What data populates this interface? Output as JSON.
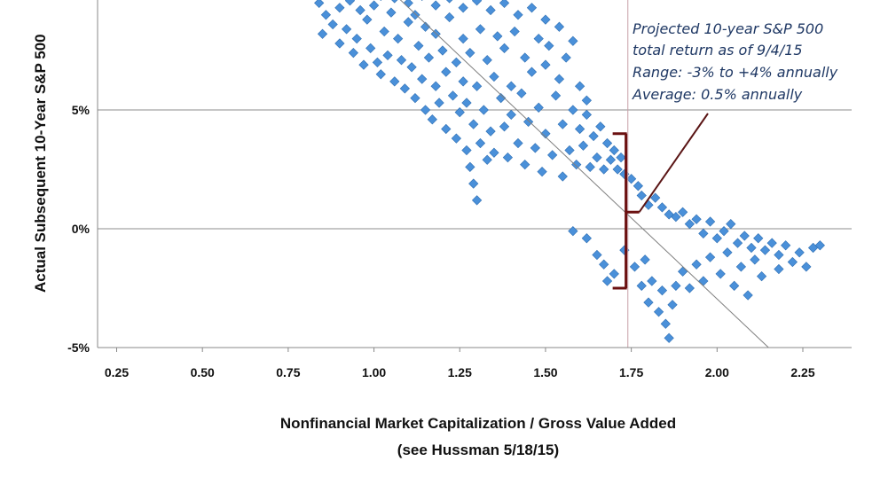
{
  "chart_data": {
    "type": "scatter",
    "title": "",
    "xlabel": "Nonfinancial Market Capitalization / Gross Value Added",
    "xlabel_sub": "(see Hussman 5/18/15)",
    "ylabel": "Actual Subsequent 10-Year S&P 500",
    "xlim": [
      0.25,
      2.35
    ],
    "ylim": [
      -5,
      10
    ],
    "x_ticks": [
      0.25,
      0.5,
      0.75,
      1.0,
      1.25,
      1.5,
      1.75,
      2.0,
      2.25
    ],
    "x_tick_labels": [
      "0.25",
      "0.50",
      "0.75",
      "1.00",
      "1.25",
      "1.50",
      "1.75",
      "2.00",
      "2.25"
    ],
    "y_ticks": [
      -5,
      0,
      5
    ],
    "y_tick_labels": [
      "-5%",
      "0%",
      "5%"
    ],
    "grid": "horizontal",
    "marker": "diamond",
    "marker_color": "#4a90d9",
    "series": [
      {
        "points": [
          [
            0.84,
            9.5
          ],
          [
            0.85,
            8.2
          ],
          [
            0.86,
            9.0
          ],
          [
            0.88,
            8.6
          ],
          [
            0.9,
            9.3
          ],
          [
            0.9,
            7.8
          ],
          [
            0.92,
            8.4
          ],
          [
            0.93,
            9.6
          ],
          [
            0.94,
            7.4
          ],
          [
            0.95,
            8.0
          ],
          [
            0.96,
            9.2
          ],
          [
            0.97,
            6.9
          ],
          [
            0.98,
            8.8
          ],
          [
            0.99,
            7.6
          ],
          [
            1.0,
            9.4
          ],
          [
            1.01,
            7.0
          ],
          [
            1.02,
            6.5
          ],
          [
            1.03,
            8.3
          ],
          [
            1.04,
            7.3
          ],
          [
            1.05,
            9.1
          ],
          [
            1.06,
            6.2
          ],
          [
            1.07,
            8.0
          ],
          [
            1.08,
            7.1
          ],
          [
            1.09,
            5.9
          ],
          [
            1.1,
            8.7
          ],
          [
            1.11,
            6.8
          ],
          [
            1.12,
            5.5
          ],
          [
            1.12,
            9.0
          ],
          [
            1.13,
            7.7
          ],
          [
            1.14,
            6.3
          ],
          [
            1.15,
            5.0
          ],
          [
            1.15,
            8.5
          ],
          [
            1.16,
            7.2
          ],
          [
            1.17,
            4.6
          ],
          [
            1.18,
            6.0
          ],
          [
            1.18,
            8.2
          ],
          [
            1.19,
            5.3
          ],
          [
            1.2,
            7.5
          ],
          [
            1.21,
            4.2
          ],
          [
            1.21,
            6.6
          ],
          [
            1.22,
            8.9
          ],
          [
            1.23,
            5.6
          ],
          [
            1.24,
            3.8
          ],
          [
            1.24,
            7.0
          ],
          [
            1.25,
            4.9
          ],
          [
            1.26,
            6.2
          ],
          [
            1.26,
            8.0
          ],
          [
            1.27,
            3.3
          ],
          [
            1.27,
            5.3
          ],
          [
            1.28,
            2.6
          ],
          [
            1.28,
            7.4
          ],
          [
            1.29,
            1.9
          ],
          [
            1.29,
            4.4
          ],
          [
            1.3,
            1.2
          ],
          [
            1.3,
            6.0
          ],
          [
            1.31,
            3.6
          ],
          [
            1.31,
            8.4
          ],
          [
            1.32,
            5.0
          ],
          [
            1.33,
            2.9
          ],
          [
            1.33,
            7.1
          ],
          [
            1.34,
            4.1
          ],
          [
            1.35,
            6.4
          ],
          [
            1.35,
            3.2
          ],
          [
            1.36,
            8.1
          ],
          [
            1.37,
            5.5
          ],
          [
            1.38,
            4.3
          ],
          [
            1.38,
            7.6
          ],
          [
            1.39,
            3.0
          ],
          [
            1.4,
            6.0
          ],
          [
            1.4,
            4.8
          ],
          [
            1.41,
            8.3
          ],
          [
            1.42,
            3.6
          ],
          [
            1.43,
            5.7
          ],
          [
            1.44,
            7.2
          ],
          [
            1.44,
            2.7
          ],
          [
            1.45,
            4.5
          ],
          [
            1.46,
            6.6
          ],
          [
            1.47,
            3.4
          ],
          [
            1.48,
            8.0
          ],
          [
            1.48,
            5.1
          ],
          [
            1.49,
            2.4
          ],
          [
            1.5,
            6.9
          ],
          [
            1.5,
            4.0
          ],
          [
            1.51,
            7.7
          ],
          [
            1.52,
            3.1
          ],
          [
            1.53,
            5.6
          ],
          [
            1.54,
            6.3
          ],
          [
            1.55,
            2.2
          ],
          [
            1.55,
            4.4
          ],
          [
            1.56,
            7.2
          ],
          [
            1.57,
            3.3
          ],
          [
            1.58,
            5.0
          ],
          [
            1.59,
            2.7
          ],
          [
            1.6,
            4.2
          ],
          [
            1.6,
            6.0
          ],
          [
            1.61,
            3.5
          ],
          [
            1.62,
            4.8
          ],
          [
            1.63,
            2.6
          ],
          [
            1.64,
            3.9
          ],
          [
            1.65,
            3.0
          ],
          [
            1.66,
            4.3
          ],
          [
            1.67,
            2.5
          ],
          [
            1.68,
            3.6
          ],
          [
            1.69,
            2.9
          ],
          [
            1.7,
            3.3
          ],
          [
            1.71,
            2.5
          ],
          [
            1.72,
            3.0
          ],
          [
            1.73,
            2.3
          ],
          [
            1.75,
            2.1
          ],
          [
            1.77,
            1.8
          ],
          [
            1.78,
            1.4
          ],
          [
            1.8,
            1.0
          ],
          [
            1.82,
            1.3
          ],
          [
            1.84,
            0.9
          ],
          [
            1.86,
            0.6
          ],
          [
            1.88,
            0.5
          ],
          [
            1.9,
            0.7
          ],
          [
            1.92,
            0.2
          ],
          [
            1.94,
            0.4
          ],
          [
            1.96,
            -0.2
          ],
          [
            1.98,
            0.3
          ],
          [
            2.0,
            -0.4
          ],
          [
            2.02,
            -0.1
          ],
          [
            2.04,
            0.2
          ],
          [
            2.06,
            -0.6
          ],
          [
            2.08,
            -0.3
          ],
          [
            2.1,
            -0.8
          ],
          [
            2.12,
            -0.4
          ],
          [
            2.14,
            -0.9
          ],
          [
            2.16,
            -0.6
          ],
          [
            2.18,
            -1.1
          ],
          [
            2.2,
            -0.7
          ],
          [
            2.22,
            -1.4
          ],
          [
            2.24,
            -1.0
          ],
          [
            2.26,
            -1.6
          ],
          [
            2.28,
            -0.8
          ],
          [
            2.3,
            -0.7
          ],
          [
            1.58,
            -0.1
          ],
          [
            1.62,
            -0.4
          ],
          [
            1.65,
            -1.1
          ],
          [
            1.67,
            -1.5
          ],
          [
            1.68,
            -2.2
          ],
          [
            1.7,
            -1.9
          ],
          [
            1.73,
            -0.9
          ],
          [
            1.76,
            -1.6
          ],
          [
            1.78,
            -2.4
          ],
          [
            1.79,
            -1.3
          ],
          [
            1.8,
            -3.1
          ],
          [
            1.81,
            -2.2
          ],
          [
            1.83,
            -3.5
          ],
          [
            1.84,
            -2.6
          ],
          [
            1.85,
            -4.0
          ],
          [
            1.86,
            -4.6
          ],
          [
            1.87,
            -3.2
          ],
          [
            1.88,
            -2.4
          ],
          [
            1.9,
            -1.8
          ],
          [
            1.92,
            -2.5
          ],
          [
            1.94,
            -1.5
          ],
          [
            1.96,
            -2.2
          ],
          [
            1.98,
            -1.2
          ],
          [
            2.01,
            -1.9
          ],
          [
            2.03,
            -1.0
          ],
          [
            2.05,
            -2.4
          ],
          [
            2.07,
            -1.6
          ],
          [
            2.09,
            -2.8
          ],
          [
            2.11,
            -1.3
          ],
          [
            2.13,
            -2.0
          ],
          [
            2.18,
            -1.7
          ],
          [
            1.02,
            9.8
          ],
          [
            1.06,
            9.7
          ],
          [
            1.1,
            9.5
          ],
          [
            1.14,
            9.8
          ],
          [
            1.18,
            9.4
          ],
          [
            1.22,
            9.7
          ],
          [
            1.26,
            9.3
          ],
          [
            1.3,
            9.6
          ],
          [
            1.34,
            9.2
          ],
          [
            1.38,
            9.5
          ],
          [
            1.42,
            9.0
          ],
          [
            1.46,
            9.3
          ],
          [
            1.5,
            8.8
          ],
          [
            1.54,
            8.5
          ],
          [
            1.58,
            7.9
          ],
          [
            1.62,
            5.4
          ]
        ]
      }
    ],
    "trendline": {
      "from": [
        1.05,
        10.0
      ],
      "to": [
        2.15,
        -5.0
      ]
    },
    "vline_x": 1.74,
    "bracket": {
      "x": 1.75,
      "y_top": 4.0,
      "y_bottom": -2.5,
      "mid": 0.7
    },
    "annotation": {
      "lines": [
        "Projected 10-year S&P 500",
        "total return as of 9/4/15",
        "Range: -3% to +4% annually",
        "Average: 0.5% annually"
      ]
    }
  }
}
